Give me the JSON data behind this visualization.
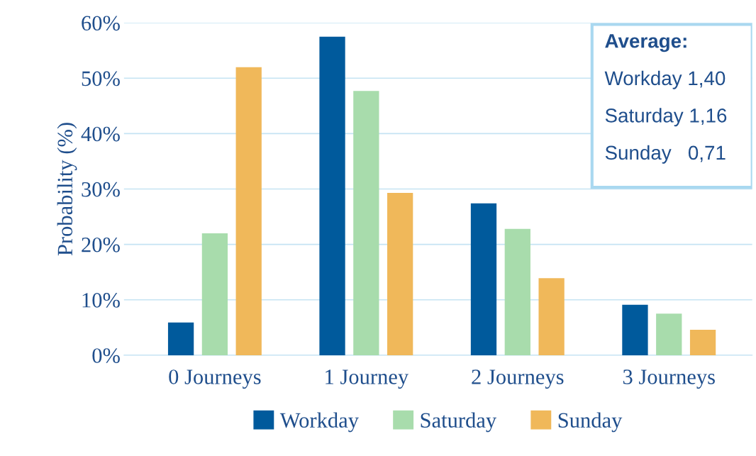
{
  "chart_data": {
    "type": "bar",
    "ylabel": "Probability (%)",
    "categories": [
      "0 Journeys",
      "1 Journey",
      "2 Journeys",
      "3 Journeys"
    ],
    "series": [
      {
        "name": "Workday",
        "color": "#005a9c",
        "values": [
          5.9,
          57.5,
          27.4,
          9.1
        ]
      },
      {
        "name": "Saturday",
        "color": "#a8dcac",
        "values": [
          22.0,
          47.7,
          22.8,
          7.5
        ]
      },
      {
        "name": "Sunday",
        "color": "#f0b85a",
        "values": [
          52.0,
          29.3,
          13.9,
          4.6
        ]
      }
    ],
    "ylim": [
      0,
      60
    ],
    "yticks": [
      {
        "value": 0,
        "label": "0%"
      },
      {
        "value": 10,
        "label": "10%"
      },
      {
        "value": 20,
        "label": "20%"
      },
      {
        "value": 30,
        "label": "30%"
      },
      {
        "value": 40,
        "label": "40%"
      },
      {
        "value": 50,
        "label": "50%"
      },
      {
        "value": 60,
        "label": "60%"
      }
    ],
    "grid": "y",
    "legend": "bottom",
    "annotations": [
      "Average:",
      "Workday 1,40",
      "Saturday 1,16",
      "Sunday   0,71"
    ]
  }
}
